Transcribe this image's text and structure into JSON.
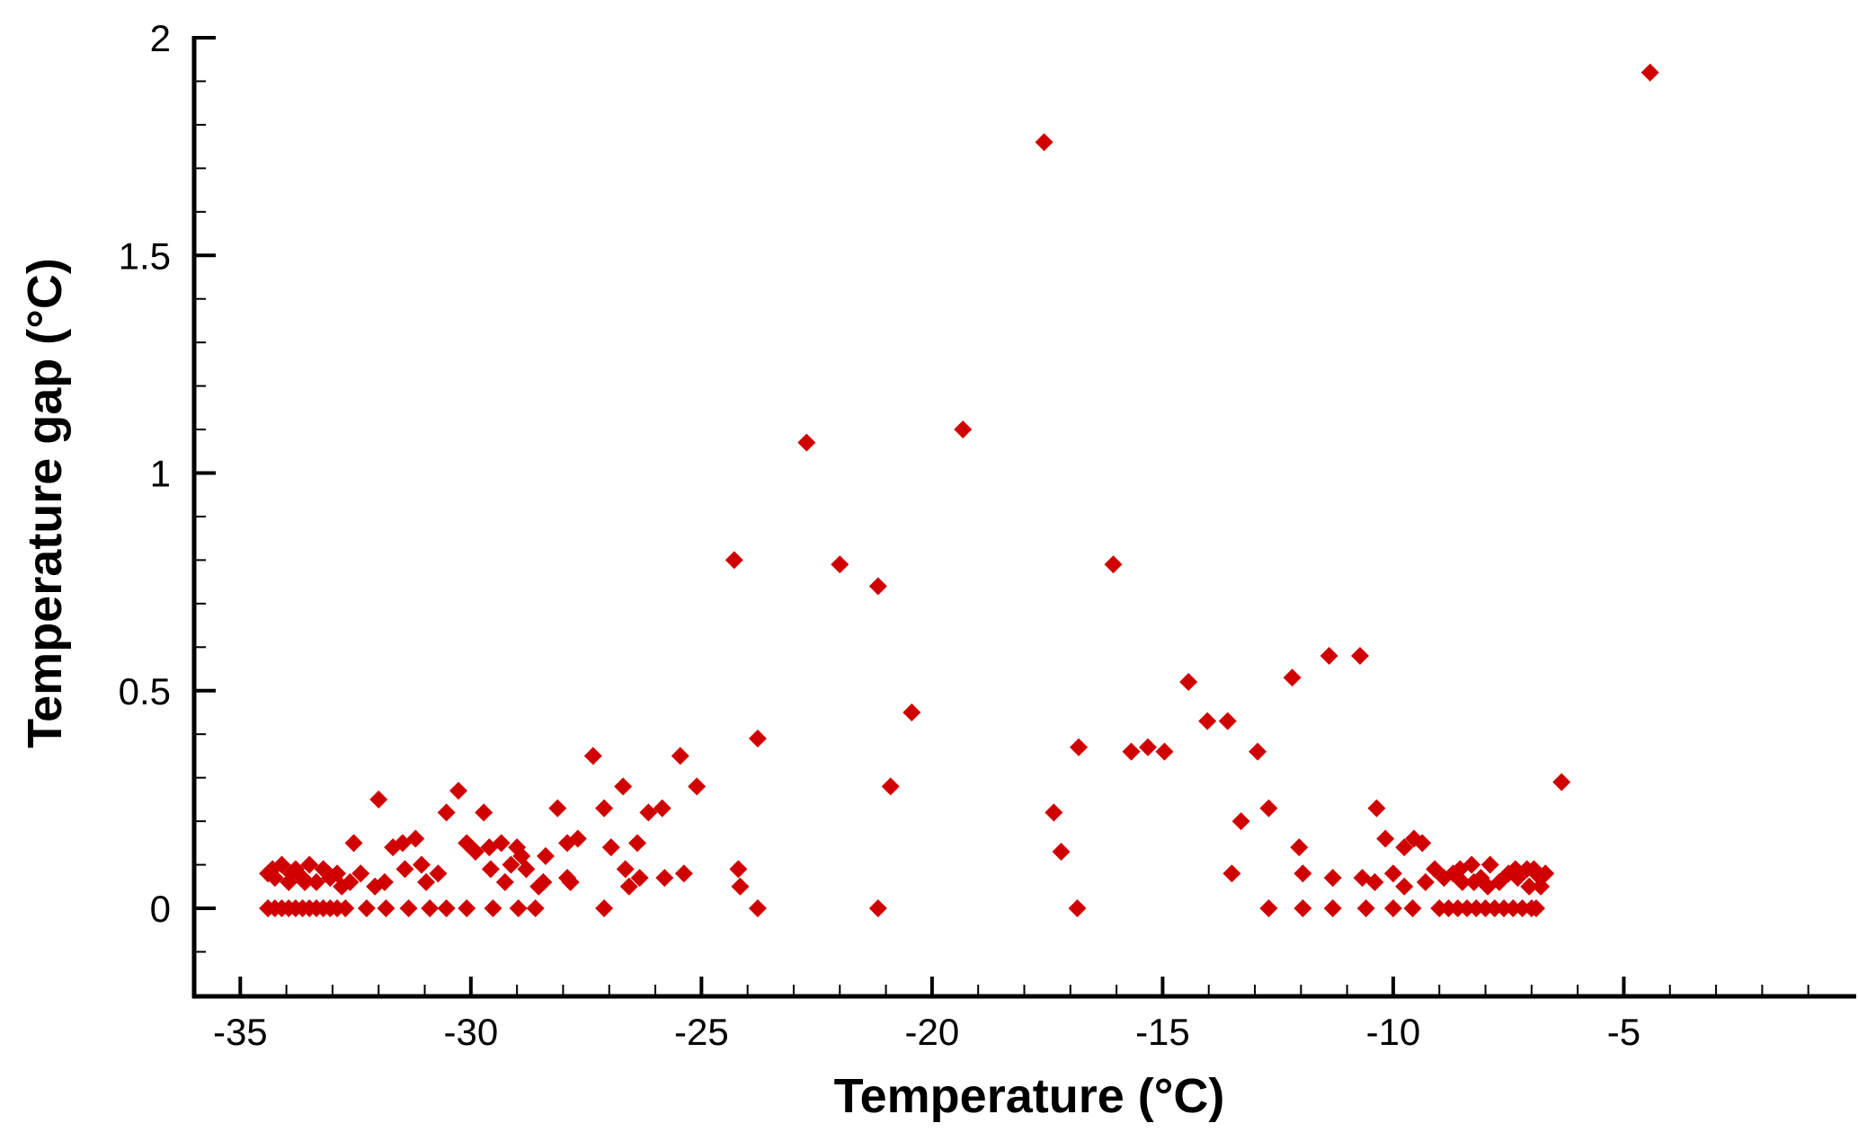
{
  "chart_data": {
    "type": "scatter",
    "title": "",
    "xlabel": "Temperature (°C)",
    "ylabel": "Temperature gap (°C)",
    "xlim": [
      -36,
      0
    ],
    "ylim": [
      -0.2,
      2
    ],
    "grid": false,
    "marker": "diamond",
    "color": "#d10000",
    "x_ticks": [
      -35,
      -30,
      -25,
      -20,
      -15,
      -10,
      -5
    ],
    "x_tick_labels": [
      "-35",
      "-30",
      "-25",
      "-20",
      "-15",
      "-10",
      "-5"
    ],
    "y_ticks": [
      0,
      0.5,
      1,
      1.5,
      2
    ],
    "y_tick_labels": [
      "0",
      "0.5",
      "1",
      "1.5",
      "2"
    ],
    "points": [
      [
        -4.43,
        1.92
      ],
      [
        -17.57,
        1.76
      ],
      [
        -22.72,
        1.07
      ],
      [
        -19.33,
        1.1
      ],
      [
        -24.29,
        0.8
      ],
      [
        -22.0,
        0.79
      ],
      [
        -21.17,
        0.74
      ],
      [
        -16.07,
        0.79
      ],
      [
        -20.44,
        0.45
      ],
      [
        -20.9,
        0.28
      ],
      [
        -23.78,
        0.39
      ],
      [
        -24.2,
        0.09
      ],
      [
        -24.16,
        0.05
      ],
      [
        -23.78,
        0
      ],
      [
        -21.17,
        0
      ],
      [
        -16.82,
        0.37
      ],
      [
        -17.36,
        0.22
      ],
      [
        -17.2,
        0.13
      ],
      [
        -16.85,
        0
      ],
      [
        -14.44,
        0.52
      ],
      [
        -14.03,
        0.43
      ],
      [
        -13.59,
        0.43
      ],
      [
        -15.68,
        0.36
      ],
      [
        -15.32,
        0.37
      ],
      [
        -14.96,
        0.36
      ],
      [
        -12.94,
        0.36
      ],
      [
        -13.3,
        0.2
      ],
      [
        -12.7,
        0.23
      ],
      [
        -13.5,
        0.08
      ],
      [
        -12.7,
        0
      ],
      [
        -12.19,
        0.53
      ],
      [
        -11.39,
        0.58
      ],
      [
        -10.72,
        0.58
      ],
      [
        -12.04,
        0.14
      ],
      [
        -11.96,
        0.08
      ],
      [
        -11.96,
        0
      ],
      [
        -11.31,
        0.07
      ],
      [
        -11.31,
        0
      ],
      [
        -10.59,
        0
      ],
      [
        -10.36,
        0.23
      ],
      [
        -10.17,
        0.16
      ],
      [
        -6.35,
        0.29
      ],
      [
        -10.67,
        0.07
      ],
      [
        -10.4,
        0.06
      ],
      [
        -10.0,
        0
      ],
      [
        -10.0,
        0.08
      ],
      [
        -9.76,
        0.05
      ],
      [
        -9.76,
        0.14
      ],
      [
        -9.55,
        0.16
      ],
      [
        -9.37,
        0.15
      ],
      [
        -9.58,
        0
      ],
      [
        -9.3,
        0.06
      ],
      [
        -9.1,
        0.09
      ],
      [
        -9.0,
        0
      ],
      [
        -8.9,
        0.07
      ],
      [
        -8.8,
        0
      ],
      [
        -8.7,
        0.08
      ],
      [
        -8.6,
        0
      ],
      [
        -8.5,
        0.06
      ],
      [
        -8.4,
        0
      ],
      [
        -8.3,
        0.1
      ],
      [
        -8.2,
        0
      ],
      [
        -8.1,
        0.07
      ],
      [
        -8.0,
        0
      ],
      [
        -7.9,
        0.1
      ],
      [
        -7.8,
        0
      ],
      [
        -7.7,
        0.06
      ],
      [
        -7.6,
        0
      ],
      [
        -7.5,
        0.08
      ],
      [
        -7.4,
        0
      ],
      [
        -7.3,
        0.07
      ],
      [
        -7.2,
        0
      ],
      [
        -7.1,
        0.09
      ],
      [
        -7.0,
        0
      ],
      [
        -6.9,
        0.08
      ],
      [
        -6.9,
        0
      ],
      [
        -6.8,
        0.05
      ],
      [
        -6.7,
        0.08
      ],
      [
        -8.55,
        0.09
      ],
      [
        -7.95,
        0.05
      ],
      [
        -7.35,
        0.09
      ],
      [
        -7.05,
        0.05
      ],
      [
        -6.95,
        0.09
      ],
      [
        -8.25,
        0.06
      ],
      [
        -27.35,
        0.35
      ],
      [
        -25.46,
        0.35
      ],
      [
        -25.1,
        0.28
      ],
      [
        -26.7,
        0.28
      ],
      [
        -25.85,
        0.23
      ],
      [
        -26.15,
        0.22
      ],
      [
        -27.11,
        0.23
      ],
      [
        -26.96,
        0.14
      ],
      [
        -26.39,
        0.15
      ],
      [
        -26.65,
        0.09
      ],
      [
        -26.57,
        0.05
      ],
      [
        -26.34,
        0.07
      ],
      [
        -25.8,
        0.07
      ],
      [
        -25.38,
        0.08
      ],
      [
        -27.11,
        0
      ],
      [
        -28.12,
        0.23
      ],
      [
        -27.68,
        0.16
      ],
      [
        -27.91,
        0.15
      ],
      [
        -27.91,
        0.07
      ],
      [
        -27.84,
        0.06
      ],
      [
        -28.38,
        0.12
      ],
      [
        -28.43,
        0.06
      ],
      [
        -28.53,
        0.05
      ],
      [
        -28.6,
        0
      ],
      [
        -28.97,
        0
      ],
      [
        -29.0,
        0.14
      ],
      [
        -28.9,
        0.12
      ],
      [
        -29.13,
        0.1
      ],
      [
        -28.8,
        0.09
      ],
      [
        -29.26,
        0.06
      ],
      [
        -29.34,
        0.15
      ],
      [
        -29.6,
        0.14
      ],
      [
        -29.72,
        0.22
      ],
      [
        -29.57,
        0.09
      ],
      [
        -30.09,
        0.15
      ],
      [
        -29.9,
        0.13
      ],
      [
        -30.27,
        0.27
      ],
      [
        -30.53,
        0.22
      ],
      [
        -30.09,
        0
      ],
      [
        -29.52,
        0
      ],
      [
        -30.53,
        0
      ],
      [
        -30.89,
        0
      ],
      [
        -31.35,
        0
      ],
      [
        -30.71,
        0.08
      ],
      [
        -30.97,
        0.06
      ],
      [
        -31.07,
        0.1
      ],
      [
        -31.2,
        0.16
      ],
      [
        -31.48,
        0.15
      ],
      [
        -31.69,
        0.14
      ],
      [
        -31.43,
        0.09
      ],
      [
        -31.87,
        0.06
      ],
      [
        -32.0,
        0.25
      ],
      [
        -31.84,
        0
      ],
      [
        -32.26,
        0
      ],
      [
        -32.54,
        0.15
      ],
      [
        -32.62,
        0.06
      ],
      [
        -32.39,
        0.08
      ],
      [
        -32.08,
        0.05
      ],
      [
        -32.72,
        0
      ],
      [
        -34.4,
        0
      ],
      [
        -34.25,
        0
      ],
      [
        -34.1,
        0
      ],
      [
        -33.95,
        0
      ],
      [
        -33.8,
        0
      ],
      [
        -33.65,
        0
      ],
      [
        -33.5,
        0
      ],
      [
        -33.35,
        0
      ],
      [
        -33.2,
        0
      ],
      [
        -33.05,
        0
      ],
      [
        -32.9,
        0
      ],
      [
        -34.4,
        0.08
      ],
      [
        -34.25,
        0.07
      ],
      [
        -34.1,
        0.1
      ],
      [
        -33.95,
        0.06
      ],
      [
        -33.8,
        0.09
      ],
      [
        -33.65,
        0.07
      ],
      [
        -33.5,
        0.1
      ],
      [
        -33.35,
        0.06
      ],
      [
        -33.2,
        0.09
      ],
      [
        -33.05,
        0.07
      ],
      [
        -32.9,
        0.08
      ],
      [
        -32.8,
        0.05
      ],
      [
        -34.3,
        0.09
      ],
      [
        -33.9,
        0.08
      ],
      [
        -33.6,
        0.06
      ],
      [
        -33.1,
        0.08
      ]
    ]
  }
}
